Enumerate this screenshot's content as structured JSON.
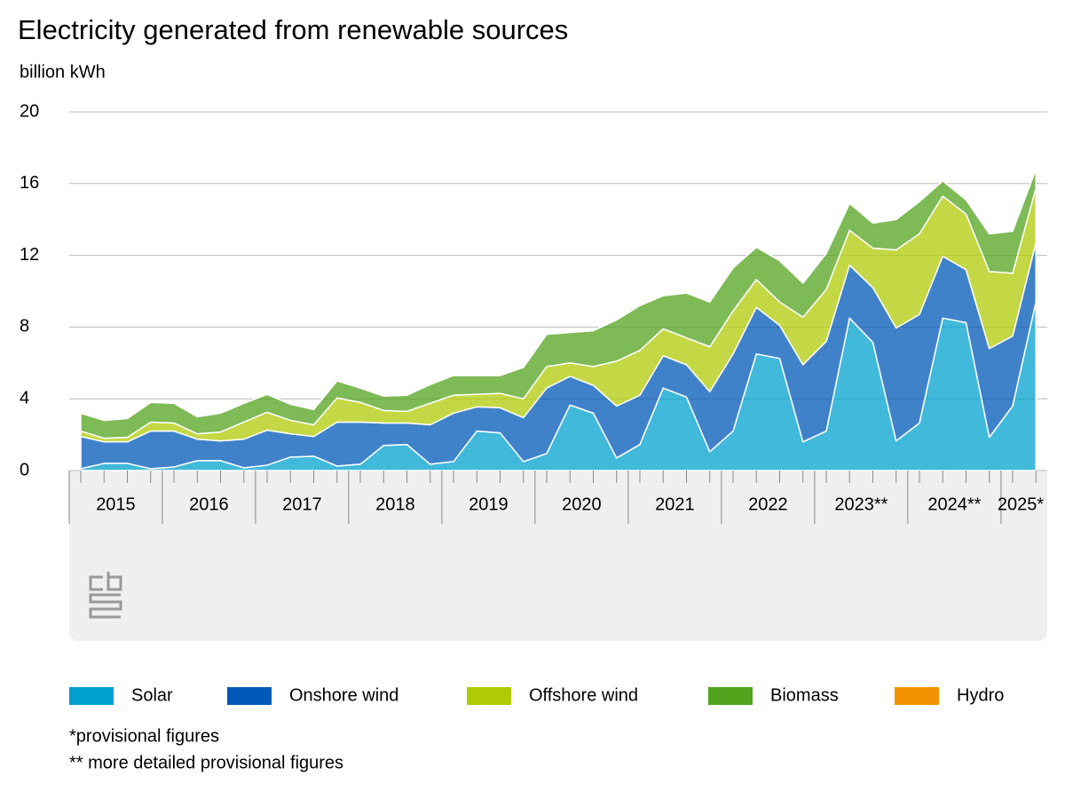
{
  "chart_data": {
    "type": "stacked-area",
    "title": "Electricity generated from renewable sources",
    "y_label": "billion kWh",
    "categories": [
      "2015",
      null,
      null,
      null,
      "2016",
      null,
      null,
      null,
      "2017",
      null,
      null,
      null,
      "2018",
      null,
      null,
      null,
      "2019",
      null,
      null,
      null,
      "2020",
      null,
      null,
      null,
      "2021",
      null,
      null,
      null,
      "2022",
      null,
      null,
      null,
      "2023**",
      null,
      null,
      null,
      "2024**",
      null,
      null,
      null,
      "2025*",
      null
    ],
    "ylim": [
      0,
      20
    ],
    "yticks": [
      0,
      4,
      8,
      12,
      16,
      20
    ],
    "grid": true,
    "legend": "bottom",
    "series": [
      {
        "name": "Solar",
        "color": "#00a1cd",
        "values": [
          0.1,
          0.4,
          0.4,
          0.1,
          0.2,
          0.55,
          0.55,
          0.15,
          0.3,
          0.75,
          0.8,
          0.25,
          0.35,
          1.4,
          1.45,
          0.35,
          0.5,
          2.2,
          2.1,
          0.5,
          0.95,
          3.65,
          3.2,
          0.7,
          1.45,
          4.6,
          4.1,
          1.05,
          2.2,
          6.5,
          6.25,
          1.6,
          2.2,
          8.5,
          7.15,
          1.65,
          2.65,
          8.5,
          8.25,
          1.85,
          3.6,
          9.4
        ]
      },
      {
        "name": "Onshore wind",
        "color": "#0058b8",
        "values": [
          1.8,
          1.2,
          1.2,
          2.1,
          2.0,
          1.2,
          1.1,
          1.6,
          1.95,
          1.3,
          1.1,
          2.45,
          2.35,
          1.25,
          1.2,
          2.2,
          2.7,
          1.35,
          1.4,
          2.45,
          3.65,
          1.6,
          1.55,
          2.9,
          2.75,
          1.8,
          1.8,
          3.35,
          4.3,
          2.6,
          1.85,
          4.3,
          5.0,
          2.95,
          3.05,
          6.3,
          6.05,
          3.45,
          2.95,
          4.95,
          3.9,
          3.3
        ]
      },
      {
        "name": "Offshore wind",
        "color": "#afcb05",
        "values": [
          0.3,
          0.2,
          0.25,
          0.5,
          0.45,
          0.3,
          0.5,
          0.95,
          1.0,
          0.75,
          0.65,
          1.35,
          1.1,
          0.7,
          0.65,
          1.2,
          1.0,
          0.7,
          0.8,
          1.05,
          1.2,
          0.75,
          1.05,
          2.5,
          2.5,
          1.5,
          1.5,
          2.5,
          2.4,
          1.55,
          1.3,
          2.65,
          2.9,
          1.95,
          2.2,
          4.35,
          4.5,
          3.35,
          3.1,
          4.3,
          3.5,
          3.05
        ]
      },
      {
        "name": "Biomass",
        "color": "#53a31d",
        "values": [
          1.0,
          1.0,
          1.05,
          1.1,
          1.1,
          0.95,
          1.05,
          1.05,
          1.0,
          0.9,
          0.85,
          0.95,
          0.8,
          0.8,
          0.9,
          1.05,
          1.1,
          1.05,
          1.0,
          1.75,
          1.8,
          1.7,
          2.0,
          2.3,
          2.5,
          1.85,
          2.5,
          2.5,
          2.4,
          1.8,
          2.3,
          1.9,
          2.0,
          1.5,
          1.4,
          1.7,
          1.8,
          0.85,
          0.8,
          2.1,
          2.35,
          1.05
        ]
      },
      {
        "name": "Hydro",
        "color": "#f39200",
        "values": [
          0.01,
          0.01,
          0.01,
          0.01,
          0.01,
          0.01,
          0.01,
          0.01,
          0.01,
          0.01,
          0.01,
          0.01,
          0.01,
          0.01,
          0.01,
          0.01,
          0.01,
          0.01,
          0.01,
          0.01,
          0.01,
          0.01,
          0.01,
          0.01,
          0.01,
          0.01,
          0.01,
          0.01,
          0.01,
          0.01,
          0.01,
          0.01,
          0.01,
          0.01,
          0.01,
          0.01,
          0.01,
          0.01,
          0.01,
          0.01,
          0.01,
          0.01
        ]
      }
    ],
    "footnotes": [
      "*provisional figures",
      "** more detailed provisional figures"
    ]
  }
}
